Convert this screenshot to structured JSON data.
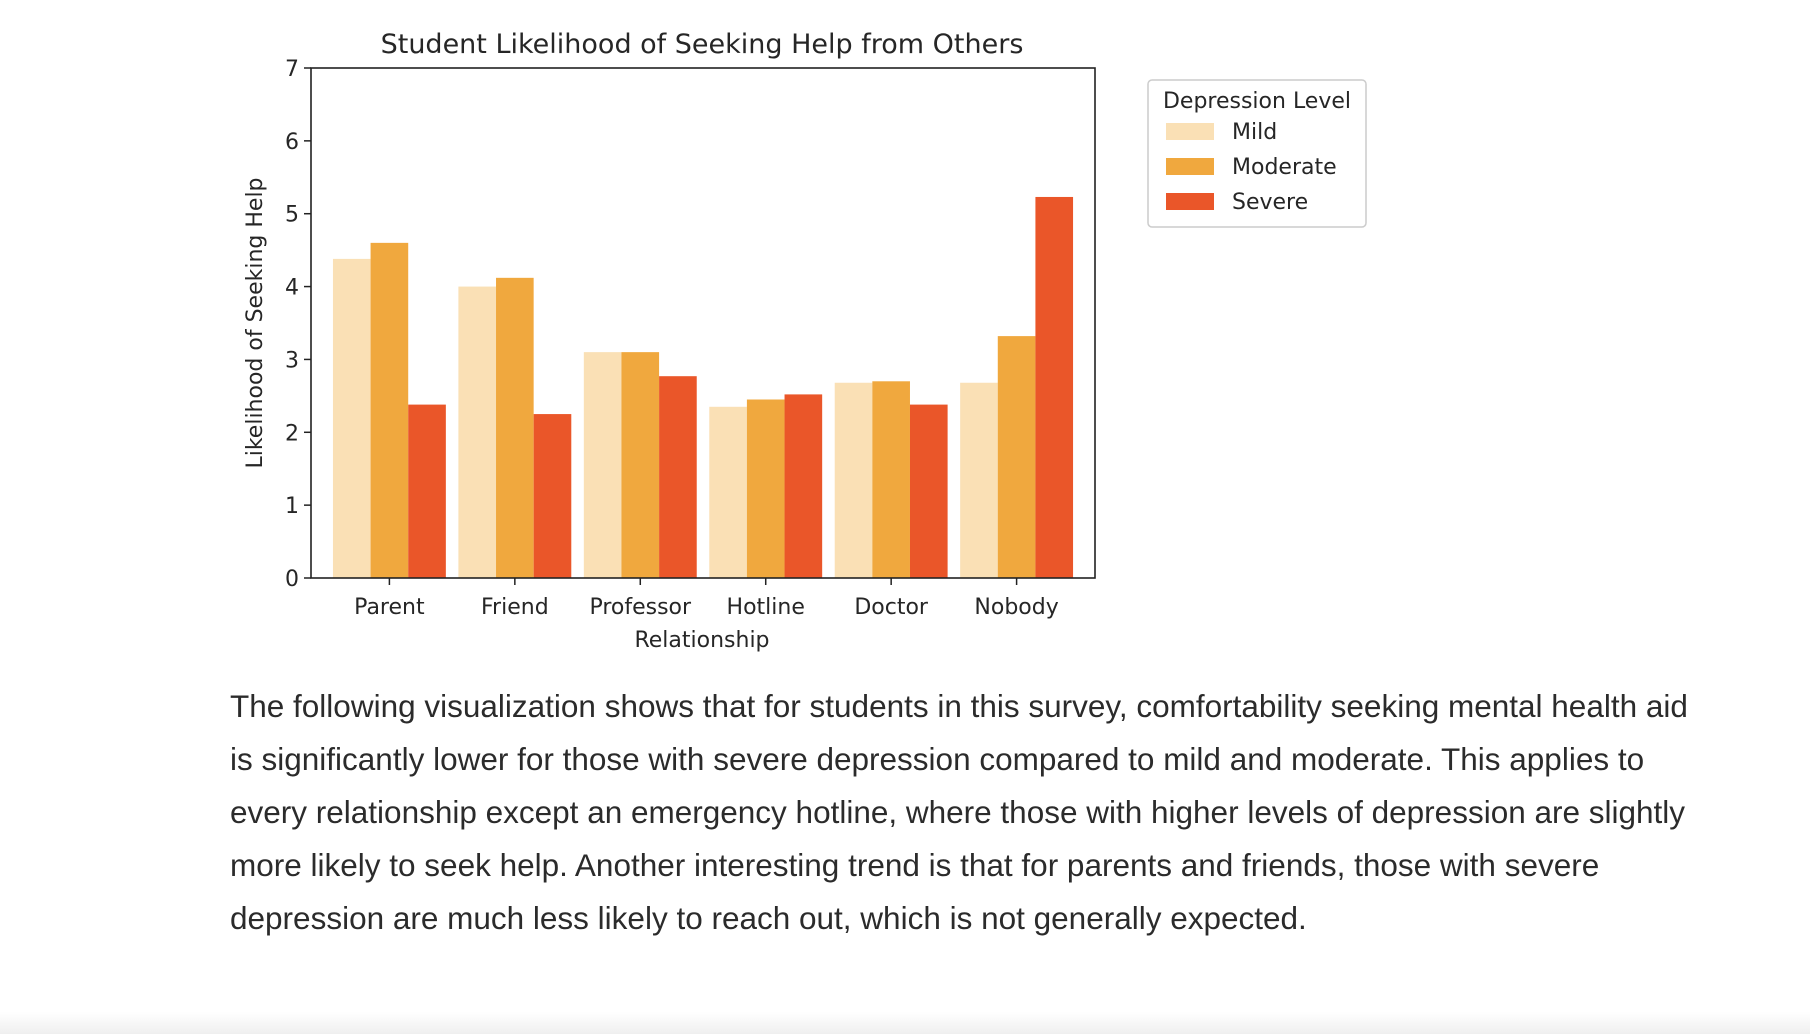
{
  "chart_data": {
    "type": "bar",
    "title": "Student Likelihood of Seeking Help from Others",
    "xlabel": "Relationship",
    "ylabel": "Likelihood of Seeking Help",
    "ylim": [
      0,
      7
    ],
    "yticks": [
      "0",
      "1",
      "2",
      "3",
      "4",
      "5",
      "6",
      "7"
    ],
    "categories": [
      "Parent",
      "Friend",
      "Professor",
      "Hotline",
      "Doctor",
      "Nobody"
    ],
    "series": [
      {
        "name": "Mild",
        "color": "#fae0b5",
        "values": [
          4.38,
          4.0,
          3.1,
          2.35,
          2.68,
          2.68
        ]
      },
      {
        "name": "Moderate",
        "color": "#f0a83e",
        "values": [
          4.6,
          4.12,
          3.1,
          2.45,
          2.7,
          3.32
        ]
      },
      {
        "name": "Severe",
        "color": "#ea5629",
        "values": [
          2.38,
          2.25,
          2.77,
          2.52,
          2.38,
          5.23
        ]
      }
    ],
    "legend": {
      "title": "Depression Level",
      "position": "outside-right"
    },
    "grid": false
  },
  "caption": "The following visualization shows that for students in this survey, comfortability seeking mental health aid is significantly lower for those with severe depression compared to mild and moderate. This applies to every relationship except an emergency hotline, where those with higher levels of depression are slightly more likely to seek help. Another interesting trend is that for parents and friends, those with severe depression are much less likely to reach out, which is not generally expected."
}
